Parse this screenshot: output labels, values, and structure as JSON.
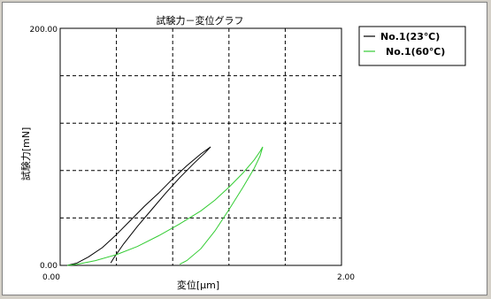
{
  "chart_data": {
    "type": "line",
    "title": "試験力－変位グラフ",
    "xlabel": "変位[μm]",
    "ylabel": "試験力[mN]",
    "xlim": [
      0,
      2
    ],
    "ylim": [
      0,
      200
    ],
    "x_tick_labels": [
      "0.00",
      "2.00"
    ],
    "y_tick_labels": [
      "0.00",
      "200.00"
    ],
    "grid": true,
    "legend_position": "top-right",
    "series": [
      {
        "name": "No.1(23℃)",
        "color": "#000000",
        "points": [
          [
            0.05,
            0
          ],
          [
            0.12,
            2
          ],
          [
            0.2,
            7
          ],
          [
            0.3,
            15
          ],
          [
            0.4,
            26
          ],
          [
            0.5,
            38
          ],
          [
            0.6,
            50
          ],
          [
            0.7,
            61
          ],
          [
            0.8,
            73
          ],
          [
            0.9,
            84
          ],
          [
            1.0,
            94
          ],
          [
            1.07,
            100
          ],
          [
            1.03,
            95
          ],
          [
            0.95,
            86
          ],
          [
            0.85,
            74
          ],
          [
            0.75,
            61
          ],
          [
            0.65,
            47
          ],
          [
            0.55,
            33
          ],
          [
            0.45,
            18
          ],
          [
            0.38,
            6
          ],
          [
            0.36,
            2
          ]
        ]
      },
      {
        "name": "No.1(60℃)",
        "color": "#33cc33",
        "points": [
          [
            0.05,
            0
          ],
          [
            0.12,
            1
          ],
          [
            0.25,
            4
          ],
          [
            0.4,
            9
          ],
          [
            0.55,
            16
          ],
          [
            0.7,
            25
          ],
          [
            0.85,
            35
          ],
          [
            1.0,
            46
          ],
          [
            1.1,
            55
          ],
          [
            1.2,
            66
          ],
          [
            1.3,
            78
          ],
          [
            1.38,
            89
          ],
          [
            1.42,
            96
          ],
          [
            1.44,
            100
          ],
          [
            1.42,
            92
          ],
          [
            1.38,
            82
          ],
          [
            1.3,
            66
          ],
          [
            1.2,
            47
          ],
          [
            1.1,
            29
          ],
          [
            1.0,
            14
          ],
          [
            0.9,
            4
          ],
          [
            0.85,
            1
          ]
        ]
      }
    ]
  }
}
